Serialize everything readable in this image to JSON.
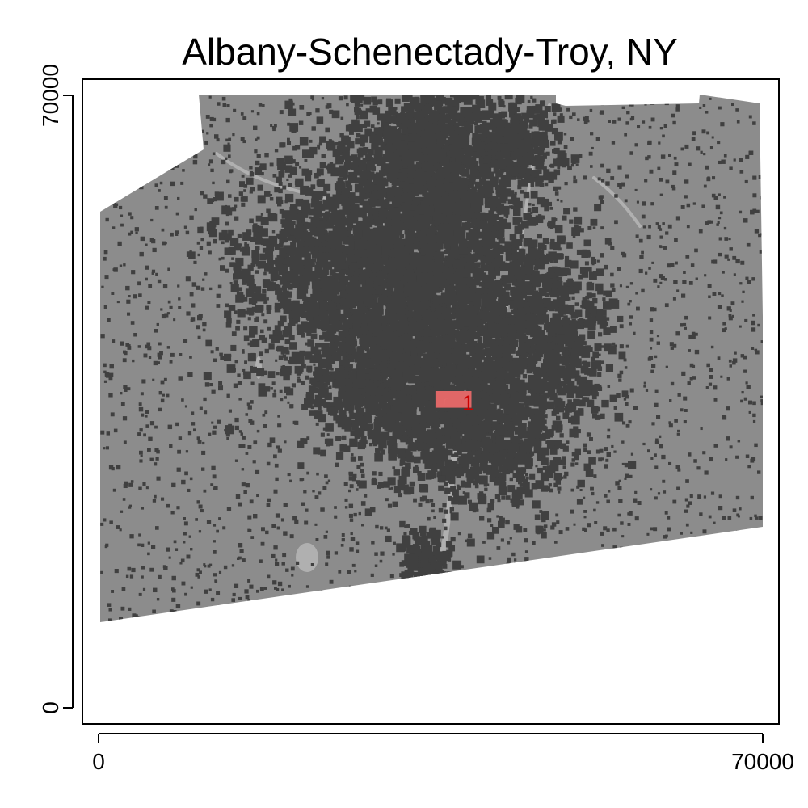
{
  "chart_data": {
    "type": "map",
    "title": "Albany-Schenectady-Troy, NY",
    "xlabel": "",
    "ylabel": "",
    "xlim": [
      0,
      70000
    ],
    "ylim": [
      0,
      70000
    ],
    "x_ticks": [
      {
        "value": 0,
        "label": "0"
      },
      {
        "value": 70000,
        "label": "70000"
      }
    ],
    "y_ticks": [
      {
        "value": 0,
        "label": "0"
      },
      {
        "value": 70000,
        "label": "70000"
      }
    ],
    "highlight_label": "1",
    "highlight_region": {
      "x_range": [
        35500,
        39300
      ],
      "y_range": [
        34300,
        36200
      ]
    },
    "colors": {
      "land": "#8c8c8c",
      "developed": "#404040",
      "water": "#b0b0b0",
      "highlight": "#f26b6b",
      "highlight_label": "#cc0000",
      "background": "#ffffff"
    }
  }
}
